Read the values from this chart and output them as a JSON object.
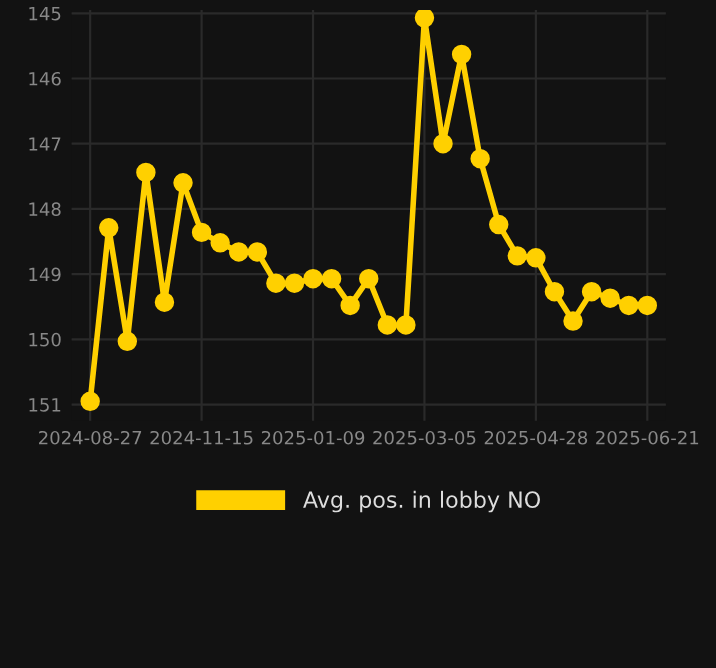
{
  "chart_data": {
    "type": "line",
    "categories": [
      "2024-08-27",
      null,
      null,
      null,
      null,
      null,
      "2024-11-15",
      null,
      null,
      null,
      null,
      null,
      "2025-01-09",
      null,
      null,
      null,
      null,
      null,
      "2025-03-05",
      null,
      null,
      null,
      null,
      null,
      "2025-04-28",
      null,
      null,
      null,
      null,
      null,
      "2025-06-21"
    ],
    "series": [
      {
        "name": "Avg. pos. in lobby NO",
        "color": "#ffd000",
        "values": [
          150.95,
          148.29,
          150.03,
          147.44,
          149.43,
          147.6,
          148.36,
          148.52,
          148.66,
          148.66,
          149.14,
          149.14,
          149.07,
          149.07,
          149.48,
          149.07,
          149.78,
          149.78,
          145.07,
          147.0,
          145.63,
          147.23,
          148.24,
          148.72,
          148.75,
          149.27,
          149.72,
          149.27,
          149.37,
          149.48,
          149.48
        ]
      }
    ],
    "ylim": [
      151.25,
      144.95
    ],
    "yticks": [
      145,
      146,
      147,
      148,
      149,
      150,
      151
    ],
    "grid": true,
    "legend": "bottom",
    "marker": "circle",
    "line_style": "solid"
  }
}
